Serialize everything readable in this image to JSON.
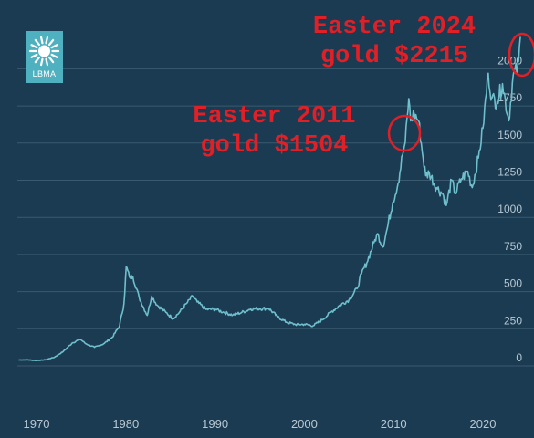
{
  "logo": {
    "text": "LBMA",
    "color": "#4fb1bf"
  },
  "annotations": [
    {
      "line1": "Easter 2024",
      "line2": "gold $2215",
      "color": "#e01f26"
    },
    {
      "line1": "Easter 2011",
      "line2": "gold $1504",
      "color": "#e01f26"
    }
  ],
  "chart_data": {
    "type": "line",
    "title": "",
    "xlabel": "",
    "ylabel": "",
    "xlim": [
      1968,
      2024.3
    ],
    "ylim": [
      -250,
      2250
    ],
    "x_ticks": [
      1970,
      1980,
      1990,
      2000,
      2010,
      2020
    ],
    "y_ticks": [
      0,
      250,
      500,
      750,
      1000,
      1250,
      1500,
      1750,
      2000
    ],
    "grid": true,
    "legend": "none",
    "colors": {
      "background": "#1b3b52",
      "line": "#6fbfcc",
      "grid": "#3b5a70",
      "ticks": "#b8c8d2"
    },
    "series": [
      {
        "x": [
          1968,
          1969,
          1970,
          1971,
          1972,
          1973,
          1974,
          1974.9,
          1975.5,
          1976.5,
          1977.5,
          1978.5,
          1979.3,
          1979.8,
          1980.05,
          1980.4,
          1980.8,
          1981.5,
          1982.4,
          1982.9,
          1983.5,
          1984.5,
          1985.3,
          1986,
          1986.8,
          1987.5,
          1988,
          1989,
          1990,
          1991,
          1992,
          1993,
          1994,
          1995,
          1996,
          1997,
          1998,
          1999,
          2000,
          2001,
          2002,
          2003,
          2004,
          2005,
          2005.9,
          2006.4,
          2007,
          2007.8,
          2008.2,
          2008.8,
          2009.3,
          2009.9,
          2010.5,
          2011,
          2011.3,
          2011.7,
          2011.9,
          2012.3,
          2012.8,
          2013.3,
          2013.6,
          2014,
          2014.8,
          2015.5,
          2015.9,
          2016.5,
          2016.9,
          2017.6,
          2018.3,
          2018.8,
          2019.5,
          2020,
          2020.6,
          2021,
          2021.6,
          2022.2,
          2022.9,
          2023.4,
          2023.9,
          2024,
          2024.2
        ],
        "values": [
          40,
          41,
          36,
          41,
          58,
          97,
          154,
          180,
          150,
          125,
          148,
          193,
          270,
          420,
          670,
          600,
          600,
          460,
          340,
          470,
          410,
          360,
          318,
          360,
          420,
          470,
          430,
          380,
          383,
          360,
          343,
          360,
          384,
          384,
          388,
          331,
          294,
          279,
          280,
          271,
          310,
          363,
          409,
          445,
          520,
          620,
          695,
          830,
          890,
          800,
          930,
          1100,
          1230,
          1420,
          1504,
          1800,
          1650,
          1700,
          1650,
          1400,
          1280,
          1300,
          1200,
          1160,
          1080,
          1250,
          1160,
          1260,
          1310,
          1200,
          1400,
          1600,
          1970,
          1800,
          1780,
          1900,
          1650,
          1960,
          2000,
          2050,
          2215
        ]
      }
    ]
  }
}
